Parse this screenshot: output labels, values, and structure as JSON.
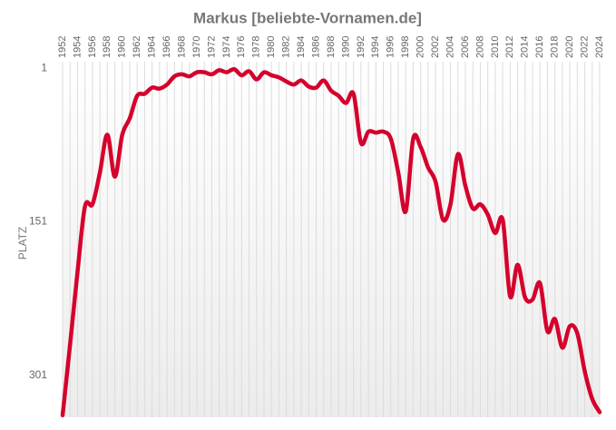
{
  "chart_data": {
    "type": "line",
    "title": "Markus [beliebte-Vornamen.de]",
    "y_label": "PLATZ",
    "x": [
      1952,
      1953,
      1954,
      1955,
      1956,
      1957,
      1958,
      1959,
      1960,
      1961,
      1962,
      1963,
      1964,
      1965,
      1966,
      1967,
      1968,
      1969,
      1970,
      1971,
      1972,
      1973,
      1974,
      1975,
      1976,
      1977,
      1978,
      1979,
      1980,
      1981,
      1982,
      1983,
      1984,
      1985,
      1986,
      1987,
      1988,
      1989,
      1990,
      1991,
      1992,
      1993,
      1994,
      1995,
      1996,
      1997,
      1998,
      1999,
      2000,
      2001,
      2002,
      2003,
      2004,
      2005,
      2006,
      2007,
      2008,
      2009,
      2010,
      2011,
      2012,
      2013,
      2014,
      2015,
      2016,
      2017,
      2018,
      2019,
      2020,
      2021,
      2022,
      2023,
      2024
    ],
    "series": [
      {
        "name": "Markus",
        "color": "#d5002c",
        "values": [
          340,
          271,
          200,
          136,
          134,
          103,
          66,
          107,
          66,
          50,
          28,
          26,
          20,
          21,
          17,
          9,
          7,
          9,
          5,
          5,
          7,
          3,
          5,
          2,
          8,
          4,
          12,
          5,
          8,
          10,
          14,
          17,
          13,
          19,
          20,
          13,
          23,
          28,
          35,
          26,
          74,
          63,
          64,
          63,
          70,
          103,
          141,
          70,
          78,
          98,
          112,
          149,
          134,
          85,
          116,
          138,
          134,
          144,
          162,
          149,
          224,
          193,
          225,
          227,
          211,
          258,
          246,
          274,
          253,
          260,
          297,
          324,
          337
        ]
      }
    ],
    "xlim": [
      1952,
      2024
    ],
    "xticks": [
      1952,
      1954,
      1956,
      1958,
      1960,
      1962,
      1964,
      1966,
      1968,
      1970,
      1972,
      1974,
      1976,
      1978,
      1980,
      1982,
      1984,
      1986,
      1988,
      1990,
      1992,
      1994,
      1996,
      1998,
      2000,
      2002,
      2004,
      2006,
      2008,
      2010,
      2012,
      2014,
      2016,
      2018,
      2020,
      2022,
      2024
    ],
    "ylim": [
      0,
      342
    ],
    "yticks": [
      1,
      151,
      301
    ],
    "y_inverted": true,
    "grid": true,
    "legend": false
  }
}
